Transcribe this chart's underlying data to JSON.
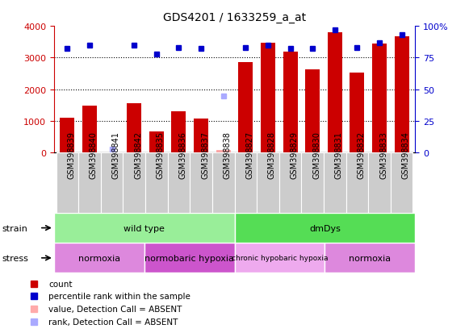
{
  "title": "GDS4201 / 1633259_a_at",
  "samples": [
    "GSM398839",
    "GSM398840",
    "GSM398841",
    "GSM398842",
    "GSM398835",
    "GSM398836",
    "GSM398837",
    "GSM398838",
    "GSM398827",
    "GSM398828",
    "GSM398829",
    "GSM398830",
    "GSM398831",
    "GSM398832",
    "GSM398833",
    "GSM398834"
  ],
  "counts": [
    1100,
    1480,
    0,
    1570,
    660,
    1310,
    1080,
    80,
    2870,
    3470,
    3200,
    2640,
    3800,
    2530,
    3450,
    3680
  ],
  "percentiles": [
    82,
    85,
    3,
    85,
    78,
    83,
    82,
    45,
    83,
    85,
    82,
    82,
    97,
    83,
    87,
    93
  ],
  "absent_count": [
    false,
    false,
    true,
    false,
    false,
    false,
    false,
    true,
    false,
    false,
    false,
    false,
    false,
    false,
    false,
    false
  ],
  "absent_rank": [
    false,
    false,
    true,
    false,
    false,
    false,
    false,
    true,
    false,
    false,
    false,
    false,
    false,
    false,
    false,
    false
  ],
  "bar_color": "#cc0000",
  "bar_absent_color": "#ffaaaa",
  "dot_color": "#0000cc",
  "dot_absent_color": "#aaaaff",
  "bg_color": "#ffffff",
  "left_axis_color": "#cc0000",
  "right_axis_color": "#0000cc",
  "ylim_left": [
    0,
    4000
  ],
  "ylim_right": [
    0,
    100
  ],
  "strain_groups": [
    {
      "label": "wild type",
      "start": 0,
      "end": 8,
      "color": "#99ee99"
    },
    {
      "label": "dmDys",
      "start": 8,
      "end": 16,
      "color": "#55dd55"
    }
  ],
  "stress_groups": [
    {
      "label": "normoxia",
      "start": 0,
      "end": 4,
      "color": "#dd88dd"
    },
    {
      "label": "normobaric hypoxia",
      "start": 4,
      "end": 8,
      "color": "#cc55cc"
    },
    {
      "label": "chronic hypobaric hypoxia",
      "start": 8,
      "end": 12,
      "color": "#eeaaee"
    },
    {
      "label": "normoxia",
      "start": 12,
      "end": 16,
      "color": "#dd88dd"
    }
  ],
  "legend_items": [
    {
      "color": "#cc0000",
      "label": "count"
    },
    {
      "color": "#0000cc",
      "label": "percentile rank within the sample"
    },
    {
      "color": "#ffaaaa",
      "label": "value, Detection Call = ABSENT"
    },
    {
      "color": "#aaaaff",
      "label": "rank, Detection Call = ABSENT"
    }
  ],
  "tick_fontsize": 7,
  "title_fontsize": 10
}
